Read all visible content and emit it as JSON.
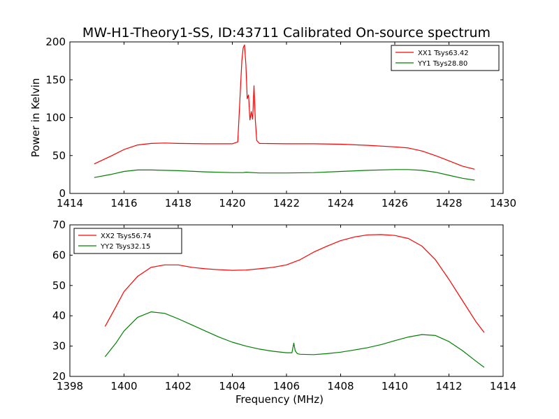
{
  "figure_title": "MW-H1-Theory1-SS, ID:43711 Calibrated On-source spectrum",
  "colors": {
    "red": "#ff0000",
    "green": "#008000",
    "axis": "#000000",
    "background": "#ffffff"
  },
  "chart_data": [
    {
      "type": "line",
      "title": "MW-H1-Theory1-SS, ID:43711 Calibrated On-source spectrum",
      "xlabel": "",
      "ylabel": "Power in Kelvin",
      "xlim": [
        1414,
        1430
      ],
      "ylim": [
        0,
        200
      ],
      "xticks": [
        "1414",
        "1416",
        "1418",
        "1420",
        "1422",
        "1424",
        "1426",
        "1428",
        "1430"
      ],
      "yticks": [
        "0",
        "50",
        "100",
        "150",
        "200"
      ],
      "grid": false,
      "legend_position": "top-right",
      "legend": [
        "XX1 Tsys63.42",
        "YY1 Tsys28.80"
      ],
      "series": [
        {
          "name": "XX1 Tsys63.42",
          "color": "#ff0000",
          "x": [
            1414.9,
            1415.5,
            1416.0,
            1416.5,
            1417.0,
            1417.5,
            1418.0,
            1419.0,
            1420.0,
            1420.2,
            1420.35,
            1420.4,
            1420.45,
            1420.5,
            1420.55,
            1420.6,
            1420.65,
            1420.7,
            1420.75,
            1420.8,
            1420.85,
            1420.9,
            1421.0,
            1422.0,
            1423.0,
            1424.0,
            1425.0,
            1426.0,
            1426.5,
            1427.0,
            1427.5,
            1428.0,
            1428.5,
            1428.95
          ],
          "y": [
            39,
            49,
            58,
            64,
            66,
            66.5,
            66,
            65.5,
            65.5,
            68,
            175,
            192,
            196,
            170,
            125,
            130,
            97,
            108,
            98,
            142,
            97,
            70,
            66,
            65.5,
            65.5,
            65,
            63.5,
            61.5,
            60,
            56,
            50,
            43,
            36,
            32
          ]
        },
        {
          "name": "YY1 Tsys28.80",
          "color": "#008000",
          "x": [
            1414.9,
            1415.5,
            1416.0,
            1416.5,
            1417.0,
            1418.0,
            1419.0,
            1420.0,
            1420.4,
            1420.5,
            1421.0,
            1422.0,
            1423.0,
            1424.0,
            1425.0,
            1426.0,
            1426.5,
            1427.0,
            1427.5,
            1428.0,
            1428.5,
            1428.95
          ],
          "y": [
            21,
            25,
            29,
            31,
            31,
            30,
            28.5,
            27.5,
            27.5,
            28,
            27,
            27,
            27.5,
            29,
            30.5,
            31.5,
            31.5,
            30.5,
            28,
            24,
            20,
            17.5
          ]
        }
      ]
    },
    {
      "type": "line",
      "title": "",
      "xlabel": "Frequency (MHz)",
      "ylabel": "",
      "xlim": [
        1398,
        1414
      ],
      "ylim": [
        20,
        70
      ],
      "xticks": [
        "1398",
        "1400",
        "1402",
        "1404",
        "1406",
        "1408",
        "1410",
        "1412",
        "1414"
      ],
      "yticks": [
        "20",
        "30",
        "40",
        "50",
        "60",
        "70"
      ],
      "grid": false,
      "legend_position": "top-left",
      "legend": [
        "XX2 Tsys56.74",
        "YY2 Tsys32.15"
      ],
      "series": [
        {
          "name": "XX2 Tsys56.74",
          "color": "#ff0000",
          "x": [
            1399.3,
            1399.7,
            1400.0,
            1400.5,
            1401.0,
            1401.5,
            1402.0,
            1402.5,
            1403.0,
            1403.5,
            1404.0,
            1404.5,
            1405.0,
            1405.5,
            1406.0,
            1406.5,
            1407.0,
            1407.5,
            1408.0,
            1408.5,
            1409.0,
            1409.5,
            1410.0,
            1410.5,
            1411.0,
            1411.5,
            1412.0,
            1412.5,
            1413.0,
            1413.3
          ],
          "y": [
            36.5,
            43,
            48,
            53,
            56,
            56.8,
            56.8,
            56,
            55.5,
            55.2,
            55,
            55.1,
            55.5,
            56,
            56.8,
            58.5,
            61,
            63,
            64.8,
            66,
            66.7,
            66.8,
            66.5,
            65.5,
            63,
            58.5,
            52,
            45,
            38,
            34.5
          ]
        },
        {
          "name": "YY2 Tsys32.15",
          "color": "#008000",
          "x": [
            1399.3,
            1399.7,
            1400.0,
            1400.5,
            1401.0,
            1401.5,
            1402.0,
            1402.5,
            1403.0,
            1403.5,
            1404.0,
            1404.5,
            1405.0,
            1405.5,
            1406.0,
            1406.2,
            1406.27,
            1406.32,
            1406.4,
            1406.5,
            1407.0,
            1407.5,
            1408.0,
            1408.5,
            1409.0,
            1409.5,
            1410.0,
            1410.5,
            1411.0,
            1411.5,
            1412.0,
            1412.5,
            1413.0,
            1413.3
          ],
          "y": [
            26.5,
            31,
            35,
            39.5,
            41.3,
            40.8,
            39,
            37,
            35,
            33,
            31.3,
            30,
            29,
            28.3,
            27.8,
            27.8,
            31,
            28.5,
            27.5,
            27.3,
            27.2,
            27.5,
            28,
            28.7,
            29.5,
            30.5,
            31.8,
            33,
            33.8,
            33.5,
            31.5,
            28.5,
            25,
            23
          ]
        }
      ]
    }
  ]
}
